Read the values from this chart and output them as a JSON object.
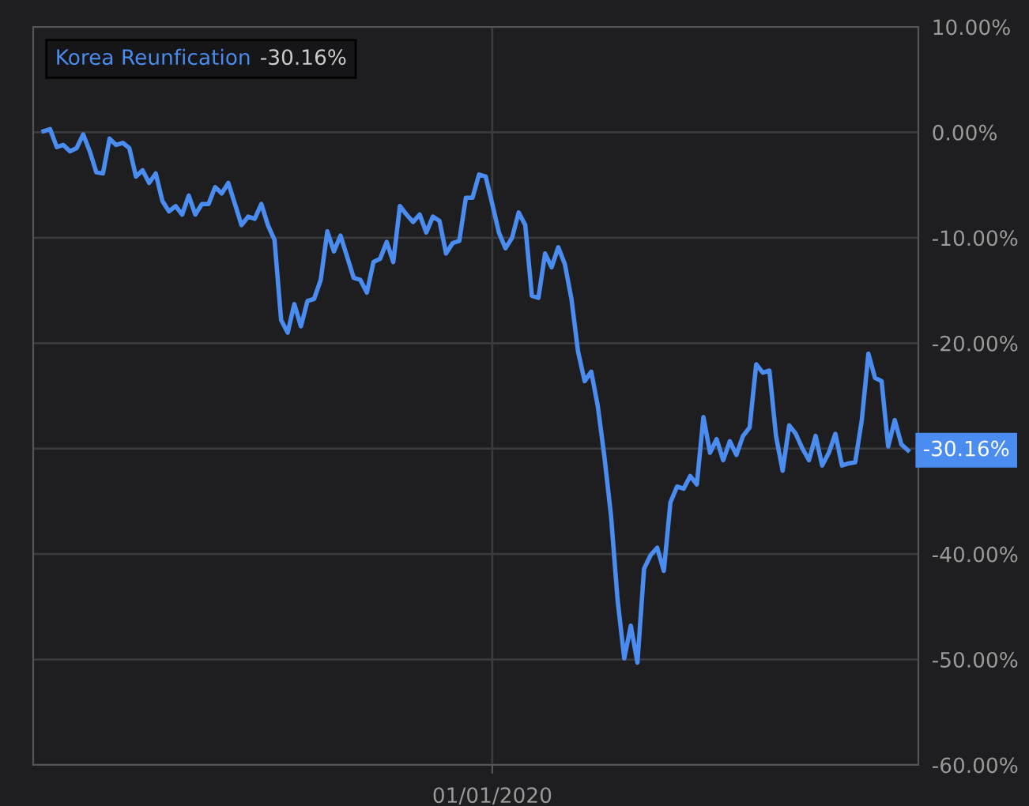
{
  "chart_data": {
    "type": "line",
    "categories": [
      null,
      null,
      null,
      null,
      null,
      null,
      null,
      null,
      null,
      null,
      null,
      null,
      null,
      null,
      null,
      null,
      null,
      null,
      null,
      null,
      null,
      null,
      null,
      null,
      null,
      null,
      null,
      null,
      null,
      null,
      null,
      null,
      null,
      null,
      null,
      null,
      null,
      null,
      null,
      null,
      null,
      null,
      null,
      null,
      null,
      null,
      null,
      null,
      null,
      null,
      null,
      null,
      null,
      null,
      null,
      null,
      null,
      null,
      null,
      null,
      null,
      null,
      null,
      null,
      null,
      null,
      null,
      null,
      "01/01/2020",
      null,
      null,
      null,
      null,
      null,
      null,
      null,
      null,
      null,
      null,
      null,
      null,
      null,
      null,
      null,
      null,
      null,
      null,
      null,
      null,
      null,
      null,
      null,
      null,
      null,
      null,
      null,
      null,
      null,
      null,
      null,
      null,
      null,
      null,
      null,
      null,
      null,
      null,
      null,
      null,
      null,
      null,
      null,
      null,
      null,
      null,
      null,
      null,
      null,
      null,
      null,
      null,
      null,
      null,
      null,
      null,
      null,
      null,
      null,
      null,
      null,
      null,
      null
    ],
    "series": [
      {
        "name": "Korea Reunfication",
        "color": "#4a8cf0",
        "values": [
          0.1,
          0.3,
          -1.4,
          -1.2,
          -1.8,
          -1.5,
          -0.2,
          -1.8,
          -3.8,
          -3.9,
          -0.6,
          -1.2,
          -1.0,
          -1.5,
          -4.2,
          -3.6,
          -4.8,
          -3.9,
          -6.5,
          -7.5,
          -7.0,
          -7.8,
          -6.0,
          -7.8,
          -6.8,
          -6.8,
          -5.2,
          -5.8,
          -4.8,
          -6.8,
          -8.8,
          -8.0,
          -8.2,
          -6.8,
          -8.8,
          -10.2,
          -17.8,
          -19.0,
          -16.3,
          -18.4,
          -16.0,
          -15.8,
          -14.0,
          -9.4,
          -11.3,
          -9.8,
          -11.8,
          -13.8,
          -14.0,
          -15.2,
          -12.3,
          -12.0,
          -10.4,
          -12.3,
          -7.0,
          -7.8,
          -8.5,
          -7.8,
          -9.5,
          -8.0,
          -8.4,
          -11.5,
          -10.5,
          -10.3,
          -6.2,
          -6.2,
          -4.0,
          -4.2,
          -6.8,
          -9.5,
          -11.0,
          -10.0,
          -7.6,
          -8.8,
          -15.5,
          -15.7,
          -11.5,
          -12.8,
          -10.9,
          -12.5,
          -15.8,
          -20.8,
          -23.6,
          -22.7,
          -26.0,
          -30.8,
          -36.4,
          -44.4,
          -49.9,
          -46.8,
          -50.3,
          -41.4,
          -40.1,
          -39.4,
          -41.6,
          -35.1,
          -33.6,
          -33.8,
          -32.6,
          -33.4,
          -27.0,
          -30.4,
          -29.1,
          -31.1,
          -29.3,
          -30.6,
          -28.8,
          -28.0,
          -22.0,
          -22.8,
          -22.6,
          -28.8,
          -32.1,
          -27.8,
          -28.6,
          -30.0,
          -31.1,
          -28.8,
          -31.6,
          -30.4,
          -28.6,
          -31.6,
          -31.4,
          -31.3,
          -27.3,
          -21.0,
          -23.3,
          -23.6,
          -29.8,
          -27.3,
          -29.6,
          -30.16
        ]
      }
    ],
    "ylim": [
      -60,
      10
    ],
    "yticks": [
      {
        "value": -60,
        "label": "-60.00%"
      },
      {
        "value": -50,
        "label": "-50.00%"
      },
      {
        "value": -40,
        "label": "-40.00%"
      },
      {
        "value": -30,
        "label": null
      },
      {
        "value": -20,
        "label": "-20.00%"
      },
      {
        "value": -10,
        "label": "-10.00%"
      },
      {
        "value": 0,
        "label": "0.00%"
      },
      {
        "value": 10,
        "label": "10.00%"
      }
    ],
    "annotations": [
      "-30.16%"
    ],
    "grid": true,
    "legend": "top left",
    "line_style": "solid",
    "marker": "none"
  }
}
